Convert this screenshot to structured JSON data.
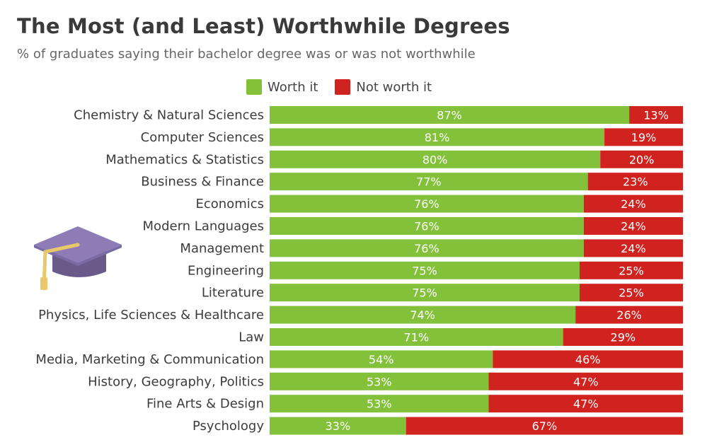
{
  "colors": {
    "worth": "#84c13b",
    "not_worth": "#d0231f",
    "label_text": "#ffffff",
    "category_text": "#3c3c3c"
  },
  "chart_data": {
    "type": "bar",
    "orientation": "horizontal",
    "stacked": true,
    "title": "The Most (and Least) Worthwhile Degrees",
    "subtitle": "% of graduates saying their bachelor degree was or was not worthwhile",
    "legend": [
      "Worth it",
      "Not worth it"
    ],
    "legend_position": "top",
    "xlim": [
      0,
      100
    ],
    "categories": [
      "Chemistry & Natural Sciences",
      "Computer Sciences",
      "Mathematics & Statistics",
      "Business & Finance",
      "Economics",
      "Modern Languages",
      "Management",
      "Engineering",
      "Literature",
      "Physics, Life Sciences & Healthcare",
      "Law",
      "Media, Marketing & Communication",
      "History, Geography, Politics",
      "Fine Arts & Design",
      "Psychology"
    ],
    "series": [
      {
        "name": "Worth it",
        "values": [
          87,
          81,
          80,
          77,
          76,
          76,
          76,
          75,
          75,
          74,
          71,
          54,
          53,
          53,
          33
        ]
      },
      {
        "name": "Not worth it",
        "values": [
          13,
          19,
          20,
          23,
          24,
          24,
          24,
          25,
          25,
          26,
          29,
          46,
          47,
          47,
          67
        ]
      }
    ],
    "value_suffix": "%"
  }
}
